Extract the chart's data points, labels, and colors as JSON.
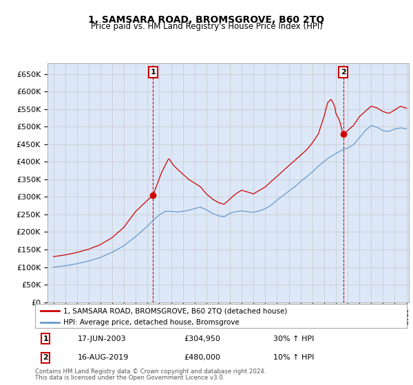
{
  "title": "1, SAMSARA ROAD, BROMSGROVE, B60 2TQ",
  "subtitle": "Price paid vs. HM Land Registry's House Price Index (HPI)",
  "legend_line1": "1, SAMSARA ROAD, BROMSGROVE, B60 2TQ (detached house)",
  "legend_line2": "HPI: Average price, detached house, Bromsgrove",
  "footer1": "Contains HM Land Registry data © Crown copyright and database right 2024.",
  "footer2": "This data is licensed under the Open Government Licence v3.0.",
  "sale1_date": "17-JUN-2003",
  "sale1_price": "£304,950",
  "sale1_hpi": "30% ↑ HPI",
  "sale2_date": "16-AUG-2019",
  "sale2_price": "£480,000",
  "sale2_hpi": "10% ↑ HPI",
  "red_color": "#cc0000",
  "blue_color": "#6699cc",
  "grid_color": "#cccccc",
  "background_color": "#ffffff",
  "plot_bg_color": "#dce8f8",
  "ylim_min": 0,
  "ylim_max": 680000,
  "yticks": [
    0,
    50000,
    100000,
    150000,
    200000,
    250000,
    300000,
    350000,
    400000,
    450000,
    500000,
    550000,
    600000,
    650000
  ],
  "xlim_min": 1994.5,
  "xlim_max": 2025.2,
  "sale1_year": 2003.46,
  "sale1_price_val": 304950,
  "sale2_year": 2019.62,
  "sale2_price_val": 480000
}
